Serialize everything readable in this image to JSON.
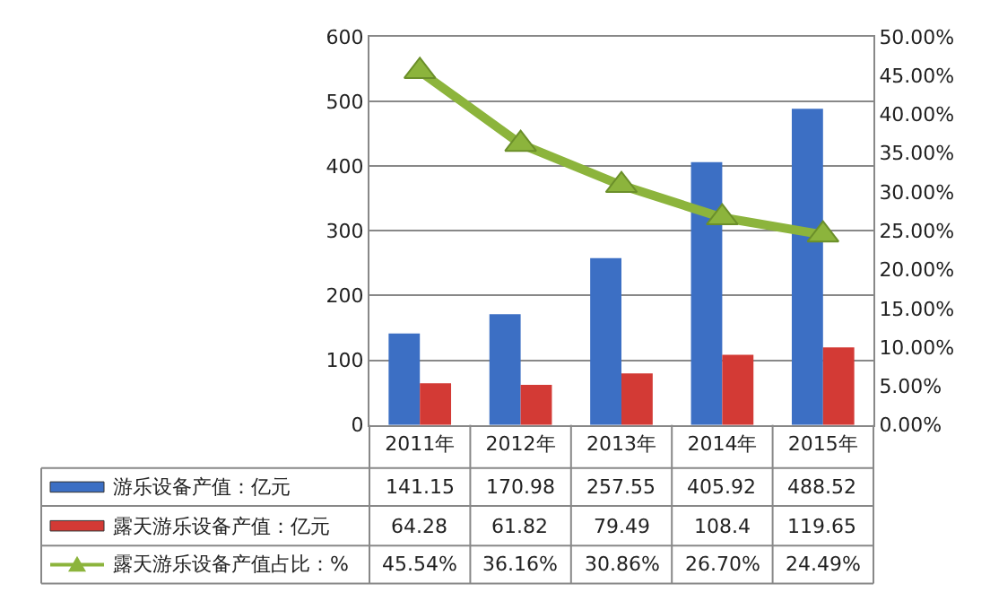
{
  "chart_data": {
    "type": "bar",
    "categories": [
      "2011年",
      "2012年",
      "2013年",
      "2014年",
      "2015年"
    ],
    "series": [
      {
        "name": "游乐设备产值：亿元",
        "color": "#3c6fc4",
        "values": [
          141.15,
          170.98,
          257.55,
          405.92,
          488.52
        ],
        "value_labels": [
          "141.15",
          "170.98",
          "257.55",
          "405.92",
          "488.52"
        ]
      },
      {
        "name": "露天游乐设备产值：亿元",
        "color": "#d33a35",
        "values": [
          64.28,
          61.82,
          79.49,
          108.4,
          119.65
        ],
        "value_labels": [
          "64.28",
          "61.82",
          "79.49",
          "108.4",
          "119.65"
        ]
      },
      {
        "name": "露天游乐设备产值占比：%",
        "type": "line",
        "axis": "y2",
        "color": "#8cb43c",
        "marker": "triangle",
        "values": [
          45.54,
          36.16,
          30.86,
          26.7,
          24.49
        ],
        "value_labels": [
          "45.54%",
          "36.16%",
          "30.86%",
          "26.70%",
          "24.49%"
        ]
      }
    ],
    "ylim": [
      0,
      600
    ],
    "yticks": [
      0,
      100,
      200,
      300,
      400,
      500,
      600
    ],
    "y2lim": [
      0,
      50
    ],
    "y2ticks": [
      {
        "value": 0,
        "label": "0.00%"
      },
      {
        "value": 5,
        "label": "5.00%"
      },
      {
        "value": 10,
        "label": "10.00%"
      },
      {
        "value": 15,
        "label": "15.00%"
      },
      {
        "value": 20,
        "label": "20.00%"
      },
      {
        "value": 25,
        "label": "25.00%"
      },
      {
        "value": 30,
        "label": "30.00%"
      },
      {
        "value": 35,
        "label": "35.00%"
      },
      {
        "value": 40,
        "label": "40.00%"
      },
      {
        "value": 45,
        "label": "45.00%"
      },
      {
        "value": 50,
        "label": "50.00%"
      }
    ],
    "grid": "y",
    "legend": "bottom left"
  }
}
